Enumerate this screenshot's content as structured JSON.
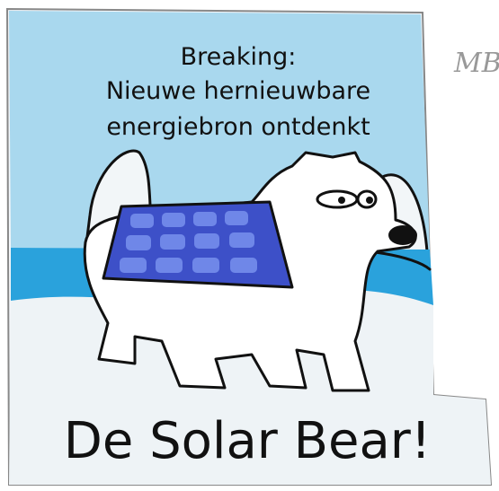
{
  "headline": {
    "lines": [
      "Breaking:",
      "Nieuwe hernieuwbare",
      "energiebron ontdenkt"
    ]
  },
  "title": "De Solar Bear!",
  "signature": "MB"
}
